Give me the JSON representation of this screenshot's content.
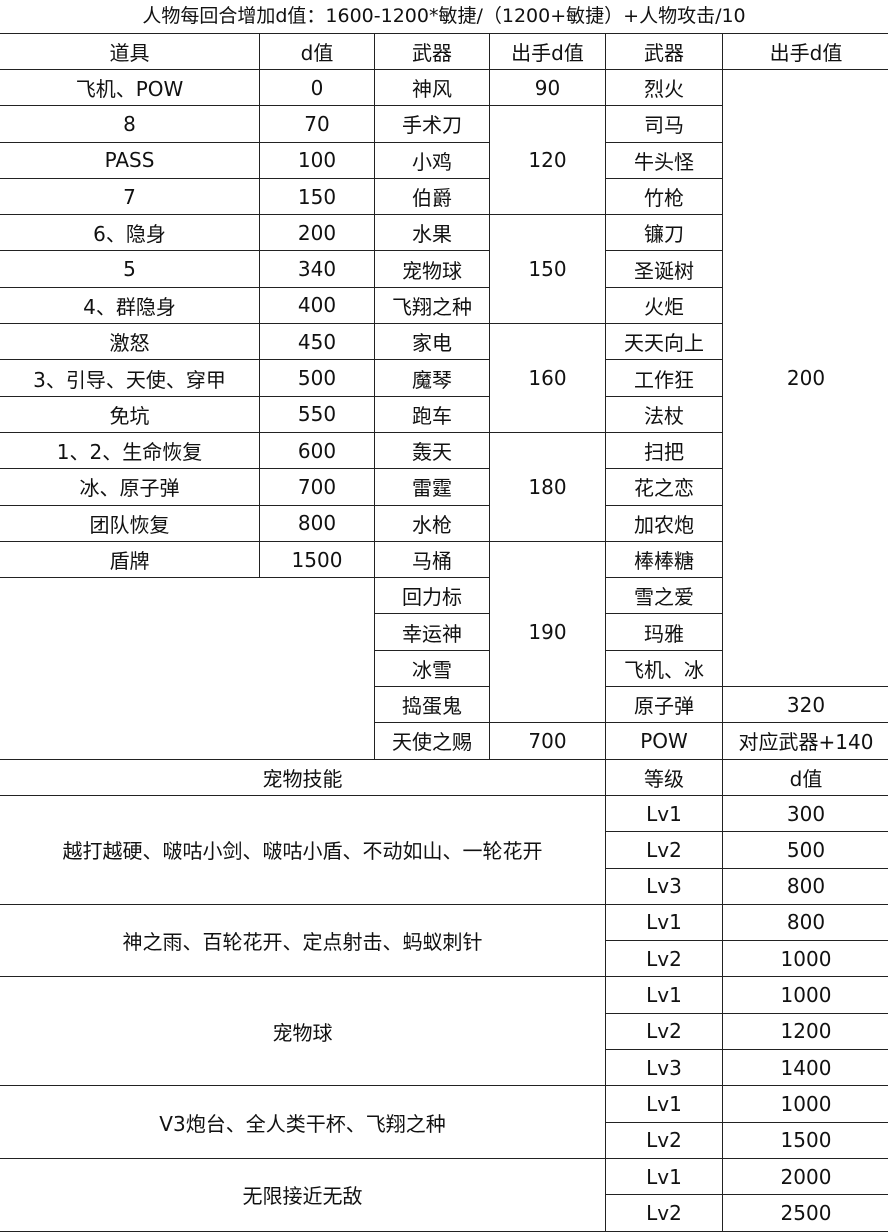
{
  "title": "人物每回合增加d值：1600-1200*敏捷/（1200+敏捷）+人物攻击/10",
  "headers": [
    "道具",
    "d值",
    "武器",
    "出手d值",
    "武器",
    "出手d值"
  ],
  "items": [
    {
      "name": "飞机、POW",
      "d": "0"
    },
    {
      "name": "8",
      "d": "70"
    },
    {
      "name": "PASS",
      "d": "100"
    },
    {
      "name": "7",
      "d": "150"
    },
    {
      "name": "6、隐身",
      "d": "200"
    },
    {
      "name": "5",
      "d": "340"
    },
    {
      "name": "4、群隐身",
      "d": "400"
    },
    {
      "name": "激怒",
      "d": "450"
    },
    {
      "name": "3、引导、天使、穿甲",
      "d": "500"
    },
    {
      "name": "免坑",
      "d": "550"
    },
    {
      "name": "1、2、生命恢复",
      "d": "600"
    },
    {
      "name": "冰、原子弹",
      "d": "700"
    },
    {
      "name": "团队恢复",
      "d": "800"
    },
    {
      "name": "盾牌",
      "d": "1500"
    }
  ],
  "weapons_a": [
    "神风",
    "手术刀",
    "小鸡",
    "伯爵",
    "水果",
    "宠物球",
    "飞翔之种",
    "家电",
    "魔琴",
    "跑车",
    "轰天",
    "雷霆",
    "水枪",
    "马桶",
    "回力标",
    "幸运神",
    "冰雪",
    "捣蛋鬼",
    "天使之赐"
  ],
  "weapons_a_d": [
    "90",
    "120",
    "150",
    "160",
    "180",
    "190",
    "700"
  ],
  "weapons_b": [
    "烈火",
    "司马",
    "牛头怪",
    "竹枪",
    "镰刀",
    "圣诞树",
    "火炬",
    "天天向上",
    "工作狂",
    "法杖",
    "扫把",
    "花之恋",
    "加农炮",
    "棒棒糖",
    "雪之爱",
    "玛雅",
    "飞机、冰",
    "原子弹",
    "POW"
  ],
  "weapons_b_d": [
    "200",
    "320",
    "对应武器+140"
  ],
  "pet": {
    "headers": [
      "宠物技能",
      "等级",
      "d值"
    ],
    "groups": [
      {
        "skill": "越打越硬、啵咕小剑、啵咕小盾、不动如山、一轮花开",
        "levels": [
          [
            "Lv1",
            "300"
          ],
          [
            "Lv2",
            "500"
          ],
          [
            "Lv3",
            "800"
          ]
        ]
      },
      {
        "skill": "神之雨、百轮花开、定点射击、蚂蚁刺针",
        "levels": [
          [
            "Lv1",
            "800"
          ],
          [
            "Lv2",
            "1000"
          ]
        ]
      },
      {
        "skill": "宠物球",
        "levels": [
          [
            "Lv1",
            "1000"
          ],
          [
            "Lv2",
            "1200"
          ],
          [
            "Lv3",
            "1400"
          ]
        ]
      },
      {
        "skill": "V3炮台、全人类干杯、飞翔之种",
        "levels": [
          [
            "Lv1",
            "1000"
          ],
          [
            "Lv2",
            "1500"
          ]
        ]
      },
      {
        "skill": "无限接近无敌",
        "levels": [
          [
            "Lv1",
            "2000"
          ],
          [
            "Lv2",
            "2500"
          ]
        ]
      }
    ]
  }
}
